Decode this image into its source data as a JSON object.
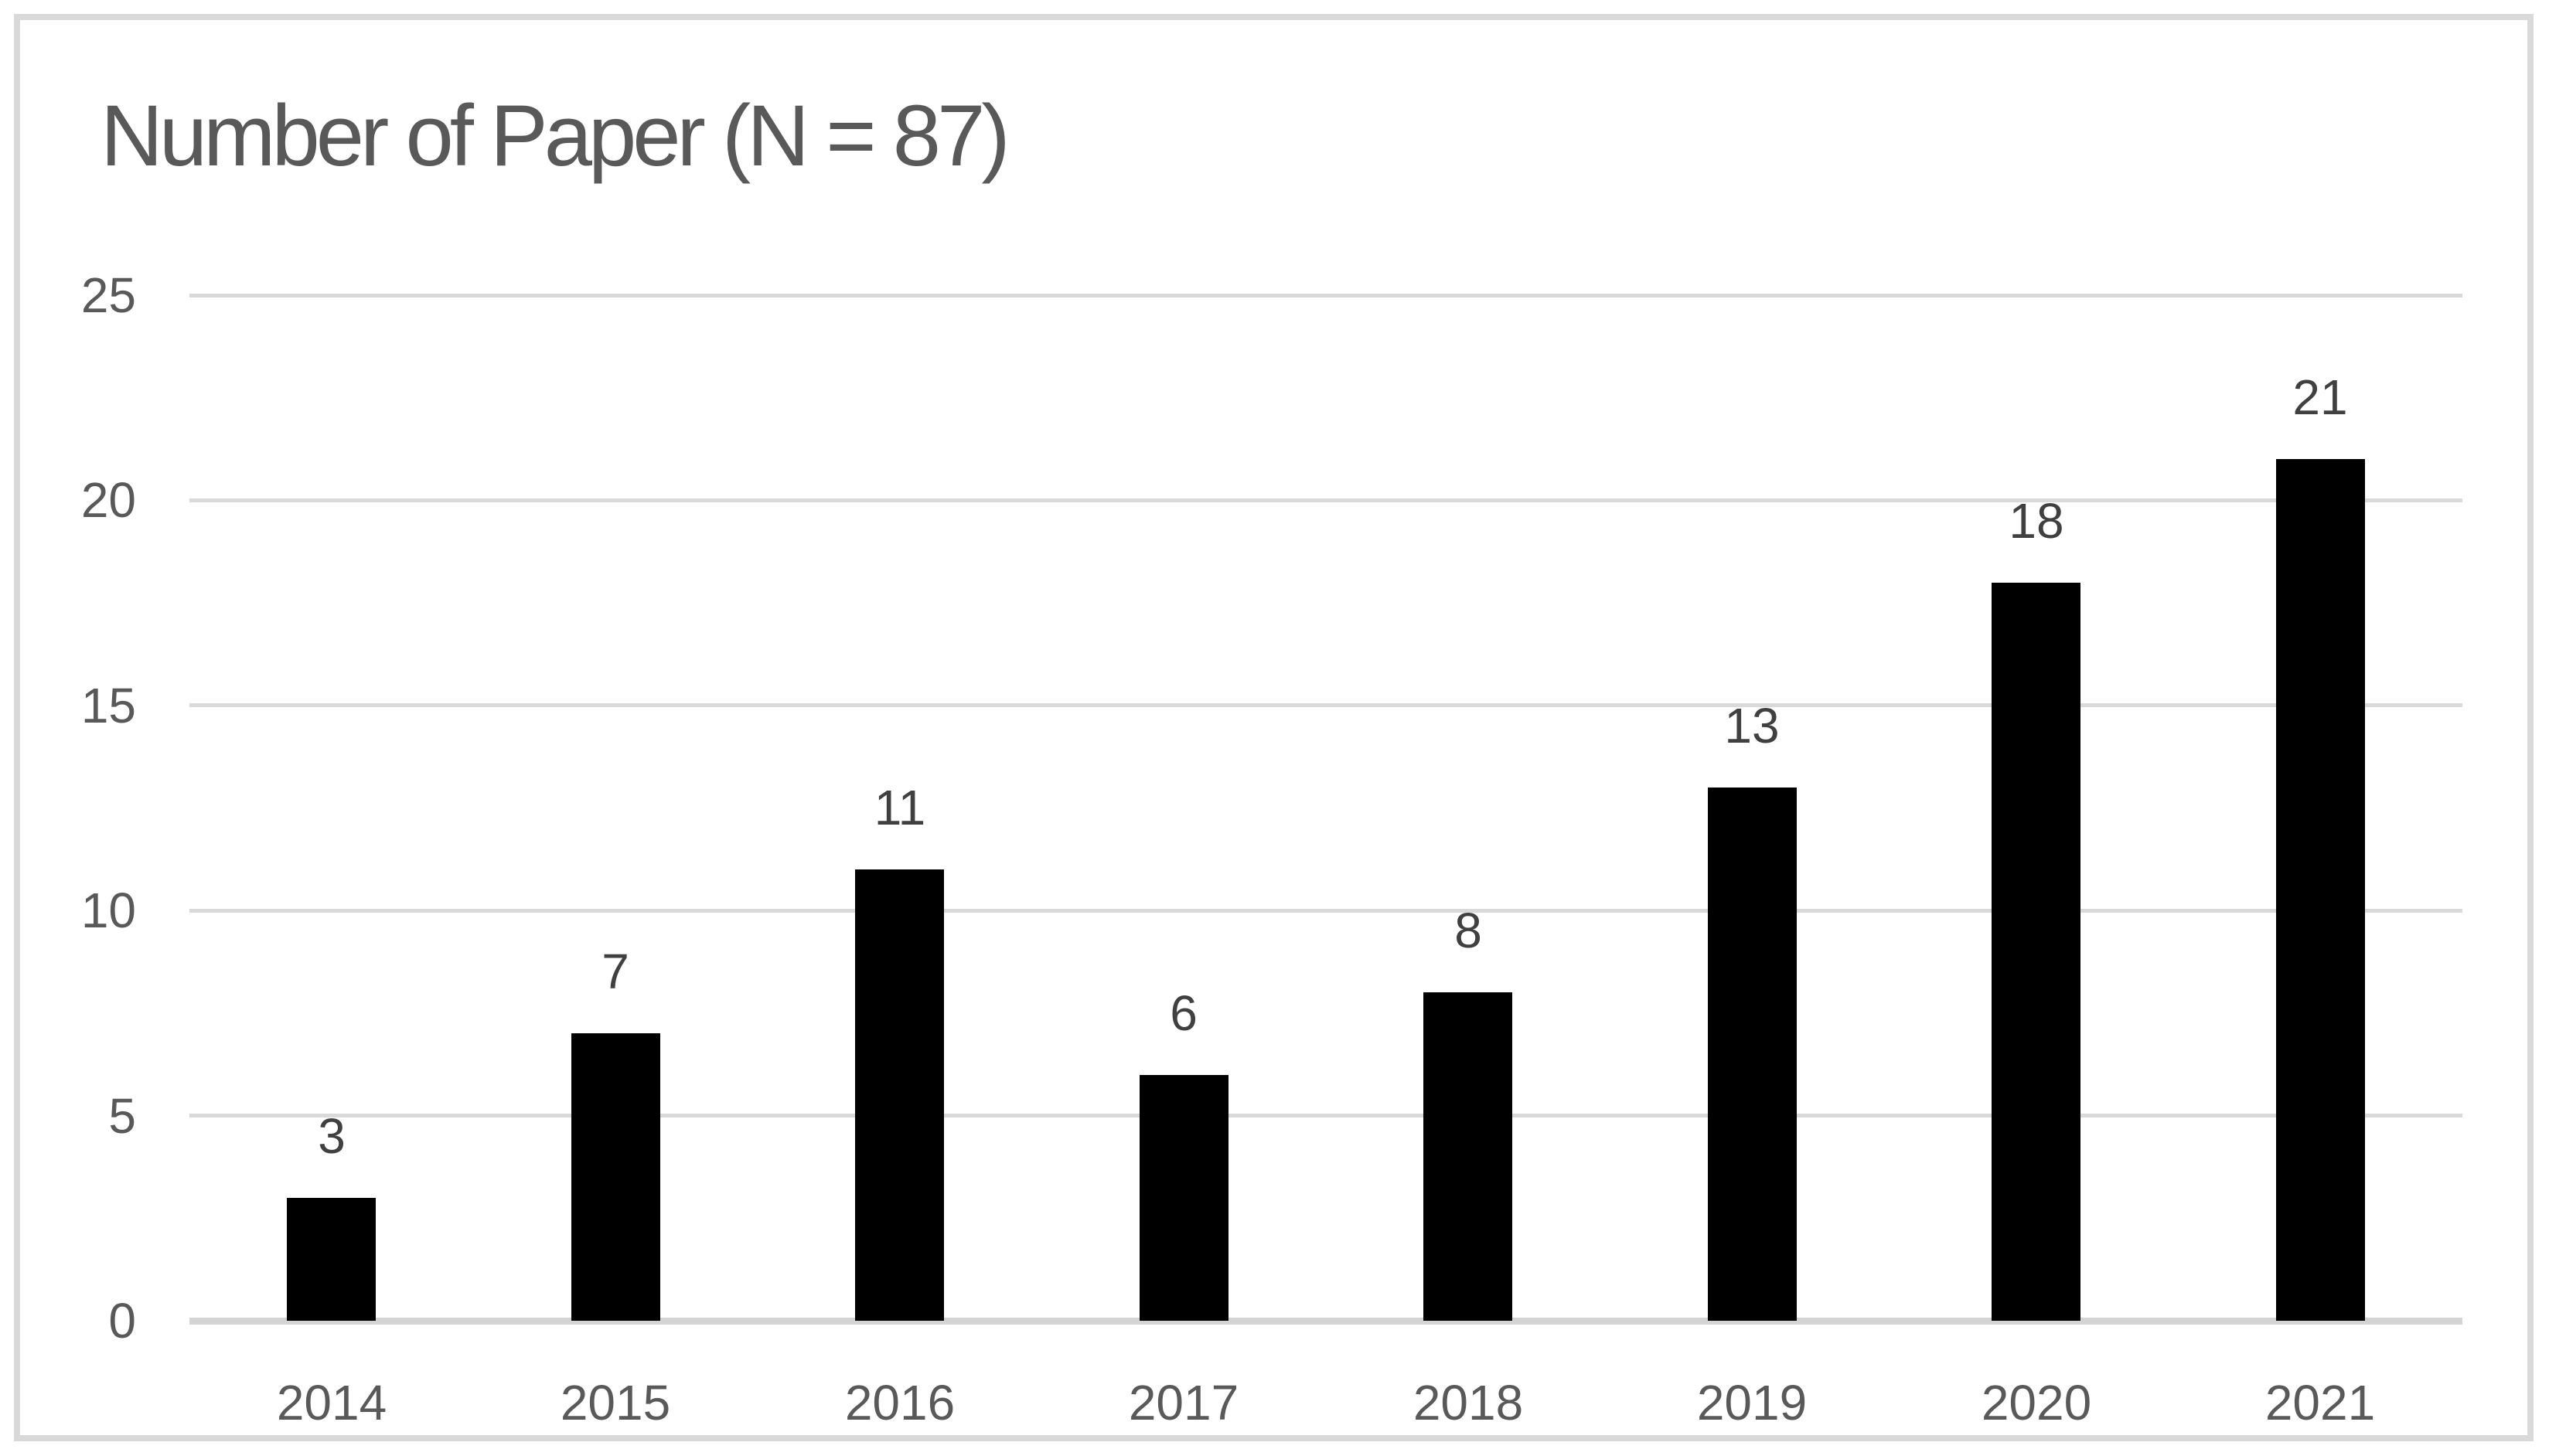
{
  "chart_data": {
    "type": "bar",
    "title": "Number of Paper (N = 87)",
    "categories": [
      "2014",
      "2015",
      "2016",
      "2017",
      "2018",
      "2019",
      "2020",
      "2021"
    ],
    "values": [
      3,
      7,
      11,
      6,
      8,
      13,
      18,
      21
    ],
    "data_labels": [
      "3",
      "7",
      "11",
      "6",
      "8",
      "13",
      "18",
      "21"
    ],
    "total_n": 87,
    "xlabel": "",
    "ylabel": "",
    "ylim": [
      0,
      25
    ],
    "yticks": [
      0,
      5,
      10,
      15,
      20,
      25
    ],
    "grid": true,
    "legend": "none",
    "colors": {
      "bar": "#000000",
      "title": "#595959",
      "tick_label": "#595959",
      "data_label": "#404040",
      "gridline": "#d9d9d9",
      "axis_line": "#d4d4d4",
      "border": "#d9d9d9",
      "background": "#ffffff"
    }
  }
}
